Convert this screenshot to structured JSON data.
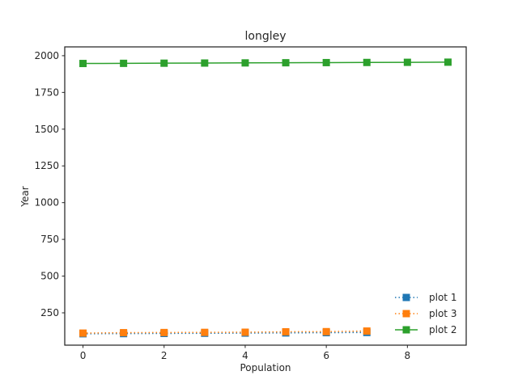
{
  "chart_data": {
    "type": "line",
    "title": "longley",
    "xlabel": "Population",
    "ylabel": "Year",
    "xlim": [
      -0.45,
      9.45
    ],
    "ylim": [
      30,
      2060
    ],
    "xticks": [
      0,
      2,
      4,
      6,
      8
    ],
    "yticks": [
      250,
      500,
      750,
      1000,
      1250,
      1500,
      1750,
      2000
    ],
    "grid": false,
    "legend_position": "lower right",
    "series": [
      {
        "name": "plot 1",
        "color": "#1f77b4",
        "linestyle": "dotted",
        "marker": "square",
        "x": [
          0,
          1,
          2,
          3,
          4,
          5,
          6,
          7
        ],
        "y": [
          107.6,
          108.6,
          109.8,
          110.9,
          112.1,
          113.3,
          115.1,
          116.2
        ]
      },
      {
        "name": "plot 3",
        "color": "#ff7f0e",
        "linestyle": "dotted",
        "marker": "square",
        "x": [
          0,
          1,
          2,
          3,
          4,
          5,
          6,
          7
        ],
        "y": [
          112,
          115,
          116,
          117,
          118,
          121,
          122,
          126
        ]
      },
      {
        "name": "plot 2",
        "color": "#2ca02c",
        "linestyle": "solid",
        "marker": "square",
        "x": [
          0,
          1,
          2,
          3,
          4,
          5,
          6,
          7,
          8,
          9
        ],
        "y": [
          1947,
          1948,
          1949,
          1950,
          1951,
          1952,
          1953,
          1954,
          1955,
          1956
        ]
      }
    ]
  }
}
